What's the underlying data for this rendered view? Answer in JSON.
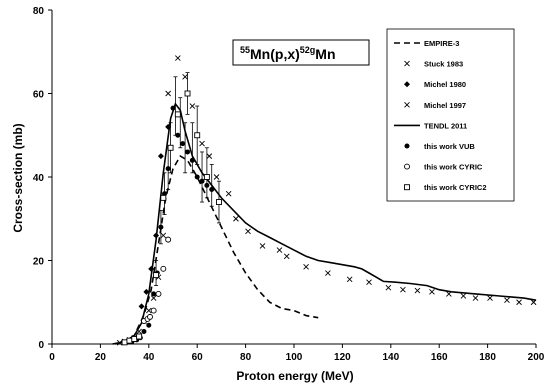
{
  "chart_data": {
    "type": "scatter",
    "title_parts": {
      "a": "55",
      "b": "Mn(p,x)",
      "c": "52g",
      "d": "Mn"
    },
    "xlabel": "Proton energy (MeV)",
    "ylabel": "Cross-section (mb)",
    "xlim": [
      0,
      200
    ],
    "ylim": [
      0,
      80
    ],
    "xticks": [
      0,
      20,
      40,
      60,
      80,
      100,
      120,
      140,
      160,
      180,
      200
    ],
    "yticks": [
      0,
      20,
      40,
      60,
      80
    ],
    "grid": false,
    "legend_position": "top-right",
    "series": [
      {
        "name": "EMPIRE-3",
        "kind": "line",
        "dash": "dashed",
        "points": [
          [
            25,
            0
          ],
          [
            30,
            0.5
          ],
          [
            34,
            2
          ],
          [
            38,
            7
          ],
          [
            41,
            13
          ],
          [
            44,
            24
          ],
          [
            47,
            35
          ],
          [
            50,
            42
          ],
          [
            53,
            45
          ],
          [
            56,
            44
          ],
          [
            60,
            40
          ],
          [
            65,
            34
          ],
          [
            70,
            28
          ],
          [
            75,
            22
          ],
          [
            80,
            17
          ],
          [
            85,
            13
          ],
          [
            90,
            10
          ],
          [
            95,
            8.5
          ],
          [
            100,
            8
          ],
          [
            105,
            6.8
          ],
          [
            110,
            6.3
          ]
        ]
      },
      {
        "name": "Stuck 1983",
        "kind": "marker",
        "marker": "x",
        "points": [
          [
            48,
            60
          ],
          [
            52,
            68.5
          ],
          [
            55,
            64
          ],
          [
            58,
            57
          ],
          [
            62,
            48
          ],
          [
            65,
            45
          ],
          [
            68,
            40
          ],
          [
            73,
            36
          ],
          [
            76,
            30
          ],
          [
            81,
            27
          ],
          [
            87,
            23.5
          ],
          [
            94,
            22.5
          ],
          [
            97,
            21
          ],
          [
            105,
            18.5
          ],
          [
            114,
            17
          ],
          [
            123,
            15.5
          ],
          [
            131,
            14.8
          ],
          [
            139,
            13.5
          ],
          [
            145,
            13
          ],
          [
            151,
            12.8
          ],
          [
            157,
            12.5
          ],
          [
            164,
            12
          ],
          [
            170,
            11.5
          ],
          [
            175,
            11
          ],
          [
            181,
            11
          ],
          [
            188,
            10.5
          ],
          [
            193,
            10
          ],
          [
            199,
            10
          ]
        ]
      },
      {
        "name": "Michel 1980",
        "kind": "marker",
        "marker": "diamond",
        "points": [
          [
            37,
            9
          ],
          [
            39,
            12.5
          ],
          [
            41,
            18
          ],
          [
            43,
            26
          ],
          [
            45,
            45
          ],
          [
            48,
            52
          ]
        ]
      },
      {
        "name": "Michel 1997",
        "kind": "marker",
        "marker": "x",
        "points": [
          [
            28,
            0.3
          ],
          [
            30,
            0.6
          ],
          [
            32,
            1.0
          ],
          [
            34,
            1.5
          ],
          [
            36,
            3
          ],
          [
            38,
            5.5
          ],
          [
            40,
            8
          ],
          [
            42,
            11
          ],
          [
            44,
            16
          ],
          [
            46,
            26
          ]
        ]
      },
      {
        "name": "TENDL 2011",
        "kind": "line",
        "dash": "solid",
        "points": [
          [
            26,
            0
          ],
          [
            30,
            0.6
          ],
          [
            34,
            2
          ],
          [
            37,
            5
          ],
          [
            40,
            12
          ],
          [
            43,
            25
          ],
          [
            46,
            41
          ],
          [
            49,
            54
          ],
          [
            51,
            57.5
          ],
          [
            53,
            56
          ],
          [
            55,
            51
          ],
          [
            58,
            45
          ],
          [
            62,
            41
          ],
          [
            66,
            38
          ],
          [
            70,
            35
          ],
          [
            75,
            32
          ],
          [
            80,
            29
          ],
          [
            85,
            27
          ],
          [
            90,
            25.5
          ],
          [
            95,
            24
          ],
          [
            100,
            22.5
          ],
          [
            105,
            21
          ],
          [
            110,
            20
          ],
          [
            115,
            19.5
          ],
          [
            120,
            19
          ],
          [
            125,
            18.5
          ],
          [
            128,
            18
          ],
          [
            131,
            17
          ],
          [
            134,
            16
          ],
          [
            137,
            15
          ],
          [
            142,
            14.8
          ],
          [
            148,
            14.5
          ],
          [
            155,
            14
          ],
          [
            160,
            13
          ],
          [
            165,
            12.5
          ],
          [
            175,
            12
          ],
          [
            185,
            11.5
          ],
          [
            195,
            11
          ],
          [
            200,
            10.5
          ]
        ]
      },
      {
        "name": "this work VUB",
        "kind": "marker",
        "marker": "dot",
        "points": [
          [
            33,
            0.5
          ],
          [
            35,
            1.0
          ],
          [
            36.5,
            1.5
          ],
          [
            38,
            3
          ],
          [
            40,
            4.5
          ],
          [
            42,
            12
          ],
          [
            43.5,
            17
          ],
          [
            45,
            28
          ],
          [
            46.5,
            36
          ],
          [
            48,
            42
          ],
          [
            50,
            56.5
          ],
          [
            52,
            50
          ],
          [
            54,
            48
          ],
          [
            56,
            46
          ],
          [
            58,
            44
          ],
          [
            60,
            40
          ],
          [
            62,
            39
          ],
          [
            64,
            38
          ],
          [
            66,
            37
          ]
        ]
      },
      {
        "name": "this work CYRIC",
        "kind": "marker",
        "marker": "circle",
        "points": [
          [
            38,
            5.5
          ],
          [
            39.5,
            6
          ],
          [
            40.5,
            6.5
          ],
          [
            42,
            8
          ],
          [
            44,
            12
          ],
          [
            46,
            18
          ],
          [
            48,
            25
          ]
        ]
      },
      {
        "name": "this work CYRIC2",
        "kind": "marker",
        "marker": "square",
        "points": [
          [
            30,
            0.4
          ],
          [
            32,
            0.8
          ],
          [
            34,
            1.2
          ],
          [
            36,
            1.8
          ],
          [
            43,
            16.5
          ],
          [
            46,
            35
          ],
          [
            49,
            47
          ],
          [
            52,
            55
          ],
          [
            56,
            60
          ],
          [
            60,
            50
          ],
          [
            64,
            40
          ],
          [
            69,
            34
          ]
        ]
      }
    ],
    "error_bars": [
      {
        "x": 43,
        "y": 17,
        "err": 3
      },
      {
        "x": 45,
        "y": 28,
        "err": 4
      },
      {
        "x": 46.5,
        "y": 36,
        "err": 5
      },
      {
        "x": 48,
        "y": 42,
        "err": 5
      },
      {
        "x": 49,
        "y": 47,
        "err": 6
      },
      {
        "x": 51,
        "y": 57,
        "err": 7
      },
      {
        "x": 53,
        "y": 53,
        "err": 6
      },
      {
        "x": 55,
        "y": 47,
        "err": 6
      },
      {
        "x": 56,
        "y": 60,
        "err": 5
      },
      {
        "x": 58,
        "y": 47,
        "err": 6
      },
      {
        "x": 60,
        "y": 50,
        "err": 7
      },
      {
        "x": 62,
        "y": 40,
        "err": 6
      },
      {
        "x": 64,
        "y": 41,
        "err": 6
      },
      {
        "x": 66,
        "y": 38,
        "err": 5
      },
      {
        "x": 69,
        "y": 34,
        "err": 5
      }
    ]
  }
}
